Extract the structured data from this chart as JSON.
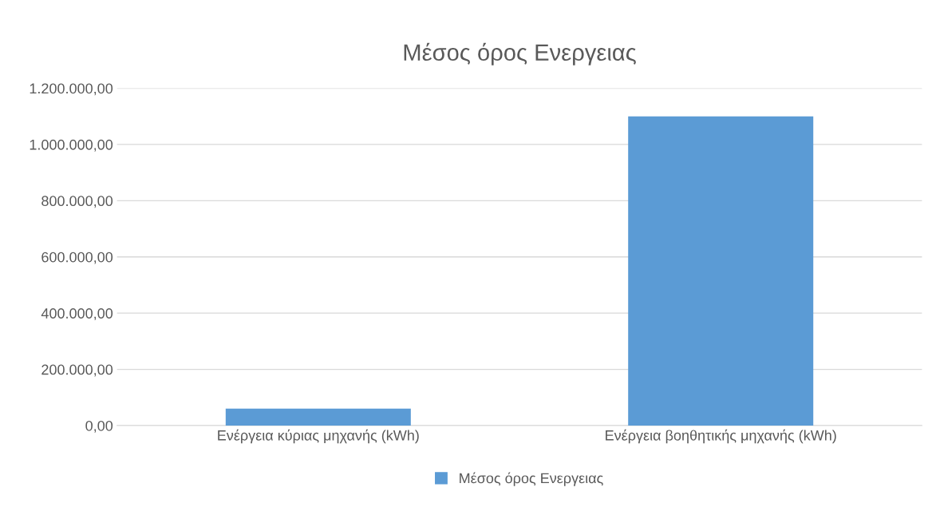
{
  "chart_data": {
    "type": "bar",
    "title": "Μέσος όρος Ενεργειας",
    "categories": [
      "Ενέργεια κύριας μηχανής (kWh)",
      "Ενέργεια βοηθητικής μηχανής (kWh)"
    ],
    "series": [
      {
        "name": "Μέσος όρος Ενεργειας",
        "color": "#5b9bd5",
        "values": [
          60000,
          1100000
        ]
      }
    ],
    "ylim": [
      0,
      1200000
    ],
    "yticks": [
      {
        "value": 0,
        "label": "0,00"
      },
      {
        "value": 200000,
        "label": "200.000,00"
      },
      {
        "value": 400000,
        "label": "400.000,00"
      },
      {
        "value": 600000,
        "label": "600.000,00"
      },
      {
        "value": 800000,
        "label": "800.000,00"
      },
      {
        "value": 1000000,
        "label": "1.000.000,00"
      },
      {
        "value": 1200000,
        "label": "1.200.000,00"
      }
    ],
    "grid": "y",
    "legend": "bottom"
  }
}
